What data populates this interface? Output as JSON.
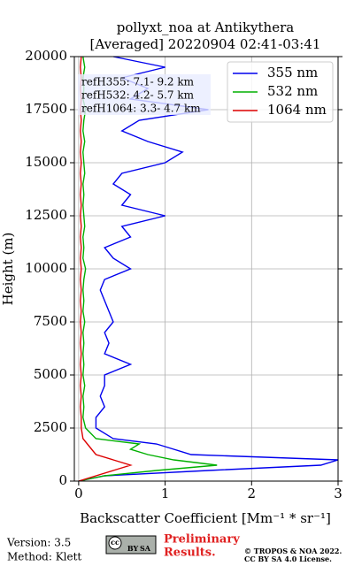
{
  "chart_data": {
    "type": "line",
    "title": [
      "pollyxt_noa at Antikythera",
      "[Averaged] 20220904 02:41-03:41"
    ],
    "xlabel": "Backscatter Coefficient [Mm⁻¹ * sr⁻¹]",
    "ylabel": "Height (m)",
    "xlim": [
      -0.05,
      3
    ],
    "xticks": [
      0,
      1,
      2,
      3
    ],
    "ylim": [
      0,
      20000
    ],
    "yticks": [
      0,
      2500,
      5000,
      7500,
      10000,
      12500,
      15000,
      17500,
      20000
    ],
    "grid": true,
    "legend": "upper right",
    "y": [
      0,
      250,
      500,
      750,
      1000,
      1250,
      1500,
      1750,
      2000,
      2500,
      3000,
      3500,
      4000,
      4500,
      5000,
      5500,
      6000,
      6500,
      7000,
      7500,
      8000,
      8500,
      9000,
      9500,
      10000,
      10500,
      11000,
      11500,
      12000,
      12500,
      13000,
      13500,
      14000,
      14500,
      15000,
      15500,
      16000,
      16500,
      17000,
      17500,
      18000,
      18500,
      19000,
      19500,
      20000
    ],
    "series": [
      {
        "name": "355 nm",
        "color": "#0000ee",
        "values": [
          0,
          0.3,
          1.5,
          2.8,
          3.0,
          1.3,
          1.1,
          0.9,
          0.4,
          0.2,
          0.2,
          0.3,
          0.25,
          0.3,
          0.3,
          0.6,
          0.3,
          0.35,
          0.3,
          0.4,
          0.35,
          0.3,
          0.25,
          0.3,
          0.6,
          0.4,
          0.3,
          0.6,
          0.5,
          1.0,
          0.5,
          0.6,
          0.4,
          0.5,
          1.0,
          1.2,
          0.8,
          0.5,
          0.7,
          1.5,
          0.6,
          0.8,
          0.5,
          1.0,
          0.4
        ]
      },
      {
        "name": "532 nm",
        "color": "#00b000",
        "values": [
          0,
          0.3,
          0.9,
          1.6,
          1.1,
          0.8,
          0.6,
          0.7,
          0.2,
          0.08,
          0.05,
          0.06,
          0.05,
          0.07,
          0.05,
          0.06,
          0.05,
          0.06,
          0.05,
          0.07,
          0.05,
          0.06,
          0.05,
          0.06,
          0.08,
          0.05,
          0.06,
          0.05,
          0.07,
          0.06,
          0.05,
          0.06,
          0.05,
          0.07,
          0.06,
          0.05,
          0.07,
          0.05,
          0.06,
          0.08,
          0.05,
          0.06,
          0.05,
          0.07,
          0.05
        ]
      },
      {
        "name": "1064 nm",
        "color": "#dd0000",
        "values": [
          0,
          0.2,
          0.4,
          0.6,
          0.4,
          0.2,
          0.15,
          0.1,
          0.05,
          0.03,
          0.03,
          0.02,
          0.03,
          0.02,
          0.03,
          0.02,
          0.03,
          0.02,
          0.03,
          0.02,
          0.03,
          0.02,
          0.03,
          0.02,
          0.03,
          0.02,
          0.03,
          0.02,
          0.03,
          0.02,
          0.03,
          0.02,
          0.03,
          0.02,
          0.03,
          0.02,
          0.03,
          0.02,
          0.03,
          0.02,
          0.03,
          0.02,
          0.03,
          0.02,
          0.03
        ]
      }
    ],
    "annotations": [
      "refH355:  7.1- 9.2 km",
      "refH532:  4.2- 5.7 km",
      "refH1064:  3.3- 4.7 km"
    ]
  },
  "footer": {
    "version": "Version: 3.5",
    "method": "Method: Klett",
    "license_badge": [
      "cc",
      "BY",
      "SA"
    ],
    "status": [
      "Preliminary",
      "Results."
    ],
    "copyright": [
      "© TROPOS & NOA 2022.",
      "CC BY SA 4.0 License."
    ]
  }
}
